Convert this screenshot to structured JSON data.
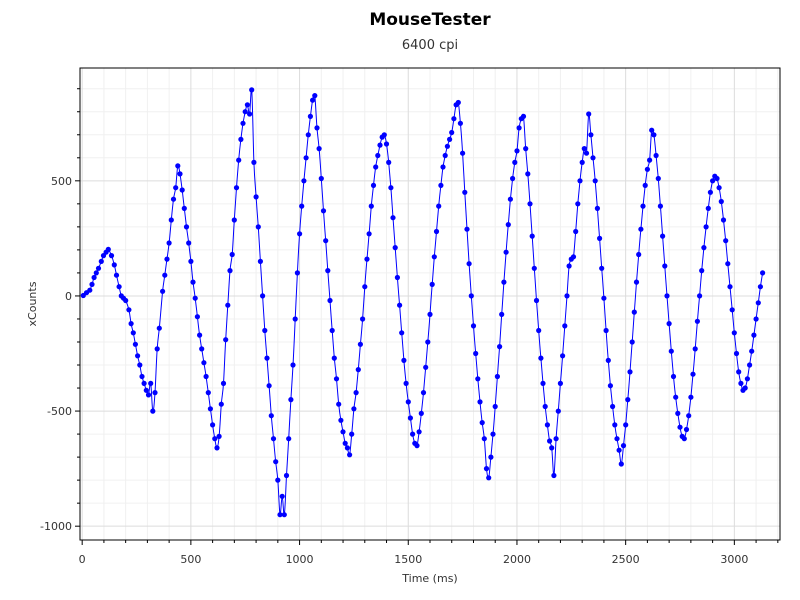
{
  "chart_data": {
    "type": "scatter",
    "title": "MouseTester",
    "subtitle": "6400 cpi",
    "xlabel": "Time (ms)",
    "ylabel": "xCounts",
    "xlim": [
      -10,
      3210
    ],
    "ylim": [
      -1060,
      990
    ],
    "xticks": [
      0,
      500,
      1000,
      1500,
      2000,
      2500,
      3000
    ],
    "yticks": [
      -1000,
      -500,
      0,
      500
    ],
    "grid": true,
    "series": [
      {
        "color": "#0000ff",
        "points": [
          [
            5,
            2
          ],
          [
            20,
            14
          ],
          [
            35,
            25
          ],
          [
            45,
            50
          ],
          [
            55,
            80
          ],
          [
            65,
            100
          ],
          [
            75,
            120
          ],
          [
            88,
            150
          ],
          [
            98,
            175
          ],
          [
            110,
            190
          ],
          [
            120,
            202
          ],
          [
            135,
            175
          ],
          [
            148,
            135
          ],
          [
            158,
            90
          ],
          [
            170,
            40
          ],
          [
            180,
            0
          ],
          [
            190,
            -10
          ],
          [
            200,
            -20
          ],
          [
            215,
            -60
          ],
          [
            225,
            -120
          ],
          [
            235,
            -160
          ],
          [
            245,
            -210
          ],
          [
            255,
            -260
          ],
          [
            265,
            -300
          ],
          [
            275,
            -350
          ],
          [
            285,
            -380
          ],
          [
            295,
            -410
          ],
          [
            305,
            -430
          ],
          [
            315,
            -380
          ],
          [
            325,
            -500
          ],
          [
            335,
            -420
          ],
          [
            345,
            -230
          ],
          [
            355,
            -140
          ],
          [
            370,
            20
          ],
          [
            380,
            90
          ],
          [
            390,
            160
          ],
          [
            400,
            230
          ],
          [
            410,
            330
          ],
          [
            420,
            420
          ],
          [
            430,
            470
          ],
          [
            440,
            565
          ],
          [
            450,
            530
          ],
          [
            460,
            460
          ],
          [
            470,
            380
          ],
          [
            480,
            300
          ],
          [
            490,
            230
          ],
          [
            500,
            150
          ],
          [
            510,
            60
          ],
          [
            520,
            -10
          ],
          [
            530,
            -90
          ],
          [
            540,
            -170
          ],
          [
            550,
            -230
          ],
          [
            560,
            -290
          ],
          [
            570,
            -350
          ],
          [
            580,
            -420
          ],
          [
            590,
            -490
          ],
          [
            600,
            -560
          ],
          [
            610,
            -620
          ],
          [
            620,
            -660
          ],
          [
            630,
            -610
          ],
          [
            640,
            -470
          ],
          [
            650,
            -380
          ],
          [
            660,
            -190
          ],
          [
            670,
            -40
          ],
          [
            680,
            110
          ],
          [
            690,
            180
          ],
          [
            700,
            330
          ],
          [
            710,
            470
          ],
          [
            720,
            590
          ],
          [
            730,
            680
          ],
          [
            740,
            750
          ],
          [
            750,
            800
          ],
          [
            760,
            830
          ],
          [
            770,
            790
          ],
          [
            780,
            895
          ],
          [
            790,
            580
          ],
          [
            800,
            430
          ],
          [
            810,
            300
          ],
          [
            820,
            150
          ],
          [
            830,
            0
          ],
          [
            840,
            -150
          ],
          [
            850,
            -270
          ],
          [
            860,
            -390
          ],
          [
            870,
            -520
          ],
          [
            880,
            -620
          ],
          [
            890,
            -720
          ],
          [
            900,
            -800
          ],
          [
            910,
            -950
          ],
          [
            920,
            -870
          ],
          [
            930,
            -950
          ],
          [
            940,
            -780
          ],
          [
            950,
            -620
          ],
          [
            960,
            -450
          ],
          [
            970,
            -300
          ],
          [
            980,
            -100
          ],
          [
            990,
            100
          ],
          [
            1000,
            270
          ],
          [
            1010,
            390
          ],
          [
            1020,
            500
          ],
          [
            1030,
            600
          ],
          [
            1040,
            700
          ],
          [
            1050,
            780
          ],
          [
            1060,
            850
          ],
          [
            1070,
            870
          ],
          [
            1080,
            730
          ],
          [
            1090,
            640
          ],
          [
            1100,
            510
          ],
          [
            1110,
            370
          ],
          [
            1120,
            240
          ],
          [
            1130,
            110
          ],
          [
            1140,
            -20
          ],
          [
            1150,
            -150
          ],
          [
            1160,
            -270
          ],
          [
            1170,
            -360
          ],
          [
            1180,
            -470
          ],
          [
            1190,
            -540
          ],
          [
            1200,
            -590
          ],
          [
            1210,
            -640
          ],
          [
            1220,
            -660
          ],
          [
            1230,
            -690
          ],
          [
            1240,
            -600
          ],
          [
            1250,
            -490
          ],
          [
            1260,
            -420
          ],
          [
            1270,
            -320
          ],
          [
            1280,
            -210
          ],
          [
            1290,
            -100
          ],
          [
            1300,
            40
          ],
          [
            1310,
            160
          ],
          [
            1320,
            270
          ],
          [
            1330,
            390
          ],
          [
            1340,
            480
          ],
          [
            1350,
            560
          ],
          [
            1360,
            610
          ],
          [
            1370,
            655
          ],
          [
            1380,
            690
          ],
          [
            1390,
            700
          ],
          [
            1400,
            660
          ],
          [
            1410,
            580
          ],
          [
            1420,
            470
          ],
          [
            1430,
            340
          ],
          [
            1440,
            210
          ],
          [
            1450,
            80
          ],
          [
            1460,
            -40
          ],
          [
            1470,
            -160
          ],
          [
            1480,
            -280
          ],
          [
            1490,
            -380
          ],
          [
            1500,
            -460
          ],
          [
            1510,
            -530
          ],
          [
            1520,
            -600
          ],
          [
            1530,
            -640
          ],
          [
            1540,
            -650
          ],
          [
            1550,
            -590
          ],
          [
            1560,
            -510
          ],
          [
            1570,
            -420
          ],
          [
            1580,
            -310
          ],
          [
            1590,
            -200
          ],
          [
            1600,
            -80
          ],
          [
            1610,
            50
          ],
          [
            1620,
            170
          ],
          [
            1630,
            280
          ],
          [
            1640,
            390
          ],
          [
            1650,
            480
          ],
          [
            1660,
            560
          ],
          [
            1670,
            610
          ],
          [
            1680,
            650
          ],
          [
            1690,
            680
          ],
          [
            1700,
            710
          ],
          [
            1710,
            770
          ],
          [
            1720,
            830
          ],
          [
            1730,
            840
          ],
          [
            1740,
            750
          ],
          [
            1750,
            620
          ],
          [
            1760,
            450
          ],
          [
            1770,
            290
          ],
          [
            1780,
            140
          ],
          [
            1790,
            0
          ],
          [
            1800,
            -130
          ],
          [
            1810,
            -250
          ],
          [
            1820,
            -360
          ],
          [
            1830,
            -460
          ],
          [
            1840,
            -550
          ],
          [
            1850,
            -620
          ],
          [
            1860,
            -750
          ],
          [
            1870,
            -790
          ],
          [
            1880,
            -700
          ],
          [
            1890,
            -600
          ],
          [
            1900,
            -480
          ],
          [
            1910,
            -350
          ],
          [
            1920,
            -220
          ],
          [
            1930,
            -80
          ],
          [
            1940,
            60
          ],
          [
            1950,
            190
          ],
          [
            1960,
            310
          ],
          [
            1970,
            420
          ],
          [
            1980,
            510
          ],
          [
            1990,
            580
          ],
          [
            2000,
            630
          ],
          [
            2010,
            730
          ],
          [
            2020,
            770
          ],
          [
            2030,
            780
          ],
          [
            2040,
            640
          ],
          [
            2050,
            530
          ],
          [
            2060,
            400
          ],
          [
            2070,
            260
          ],
          [
            2080,
            120
          ],
          [
            2090,
            -20
          ],
          [
            2100,
            -150
          ],
          [
            2110,
            -270
          ],
          [
            2120,
            -380
          ],
          [
            2130,
            -480
          ],
          [
            2140,
            -560
          ],
          [
            2150,
            -630
          ],
          [
            2160,
            -660
          ],
          [
            2170,
            -780
          ],
          [
            2180,
            -620
          ],
          [
            2190,
            -500
          ],
          [
            2200,
            -380
          ],
          [
            2210,
            -260
          ],
          [
            2220,
            -130
          ],
          [
            2230,
            0
          ],
          [
            2240,
            130
          ],
          [
            2250,
            160
          ],
          [
            2260,
            170
          ],
          [
            2270,
            280
          ],
          [
            2280,
            400
          ],
          [
            2290,
            500
          ],
          [
            2300,
            580
          ],
          [
            2310,
            640
          ],
          [
            2320,
            620
          ],
          [
            2330,
            790
          ],
          [
            2340,
            700
          ],
          [
            2350,
            600
          ],
          [
            2360,
            500
          ],
          [
            2370,
            380
          ],
          [
            2380,
            250
          ],
          [
            2390,
            120
          ],
          [
            2400,
            -10
          ],
          [
            2410,
            -150
          ],
          [
            2420,
            -280
          ],
          [
            2430,
            -390
          ],
          [
            2440,
            -480
          ],
          [
            2450,
            -560
          ],
          [
            2460,
            -620
          ],
          [
            2470,
            -670
          ],
          [
            2480,
            -730
          ],
          [
            2490,
            -650
          ],
          [
            2500,
            -560
          ],
          [
            2510,
            -450
          ],
          [
            2520,
            -330
          ],
          [
            2530,
            -200
          ],
          [
            2540,
            -70
          ],
          [
            2550,
            60
          ],
          [
            2560,
            180
          ],
          [
            2570,
            290
          ],
          [
            2580,
            390
          ],
          [
            2590,
            480
          ],
          [
            2600,
            550
          ],
          [
            2610,
            590
          ],
          [
            2620,
            720
          ],
          [
            2630,
            700
          ],
          [
            2640,
            610
          ],
          [
            2650,
            510
          ],
          [
            2660,
            390
          ],
          [
            2670,
            260
          ],
          [
            2680,
            130
          ],
          [
            2690,
            0
          ],
          [
            2700,
            -120
          ],
          [
            2710,
            -240
          ],
          [
            2720,
            -350
          ],
          [
            2730,
            -440
          ],
          [
            2740,
            -510
          ],
          [
            2750,
            -570
          ],
          [
            2760,
            -610
          ],
          [
            2770,
            -620
          ],
          [
            2780,
            -580
          ],
          [
            2790,
            -520
          ],
          [
            2800,
            -440
          ],
          [
            2810,
            -340
          ],
          [
            2820,
            -230
          ],
          [
            2830,
            -110
          ],
          [
            2840,
            0
          ],
          [
            2850,
            110
          ],
          [
            2860,
            210
          ],
          [
            2870,
            300
          ],
          [
            2880,
            380
          ],
          [
            2890,
            450
          ],
          [
            2900,
            500
          ],
          [
            2910,
            520
          ],
          [
            2920,
            510
          ],
          [
            2930,
            470
          ],
          [
            2940,
            410
          ],
          [
            2950,
            330
          ],
          [
            2960,
            240
          ],
          [
            2970,
            140
          ],
          [
            2980,
            40
          ],
          [
            2990,
            -60
          ],
          [
            3000,
            -160
          ],
          [
            3010,
            -250
          ],
          [
            3020,
            -330
          ],
          [
            3030,
            -380
          ],
          [
            3040,
            -410
          ],
          [
            3050,
            -400
          ],
          [
            3060,
            -360
          ],
          [
            3070,
            -300
          ],
          [
            3080,
            -240
          ],
          [
            3090,
            -170
          ],
          [
            3100,
            -100
          ],
          [
            3110,
            -30
          ],
          [
            3120,
            40
          ],
          [
            3130,
            100
          ]
        ]
      }
    ]
  }
}
